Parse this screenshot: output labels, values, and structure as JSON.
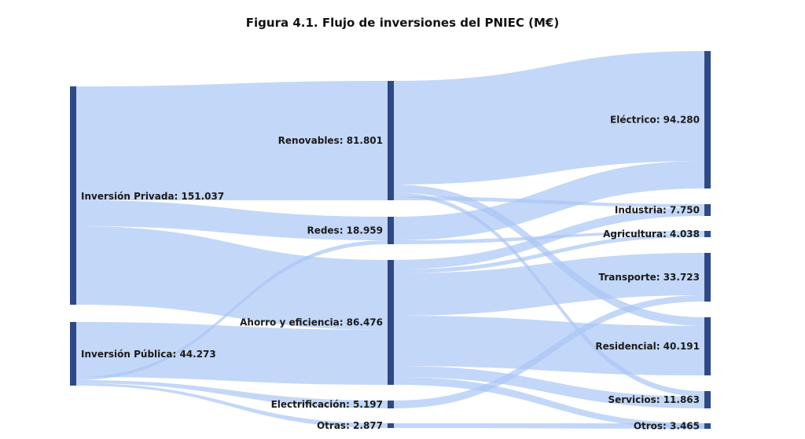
{
  "title": "Figura 4.1. Flujo de inversiones del PNIEC (M€)",
  "colors": {
    "band": "#aac6f5",
    "node": "#2e4a86",
    "text": "#1a1a1a"
  },
  "sources": [
    {
      "id": "privada",
      "label": "Inversión Privada: 151.037"
    },
    {
      "id": "publica",
      "label": "Inversión Pública: 44.273"
    }
  ],
  "categories": [
    {
      "id": "renov",
      "label": "Renovables: 81.801"
    },
    {
      "id": "redes",
      "label": "Redes: 18.959"
    },
    {
      "id": "ahorro",
      "label": "Ahorro y eficiencia: 86.476"
    },
    {
      "id": "electr",
      "label": "Electrificación: 5.197"
    },
    {
      "id": "otras",
      "label": "Otras: 2.877"
    }
  ],
  "sectors": [
    {
      "id": "elec",
      "label": "Eléctrico: 94.280"
    },
    {
      "id": "ind",
      "label": "Industria: 7.750"
    },
    {
      "id": "agri",
      "label": "Agricultura: 4.038"
    },
    {
      "id": "trans",
      "label": "Transporte: 33.723"
    },
    {
      "id": "resid",
      "label": "Residencial: 40.191"
    },
    {
      "id": "serv",
      "label": "Servicios: 11.863"
    },
    {
      "id": "otros",
      "label": "Otros: 3.465"
    }
  ]
}
